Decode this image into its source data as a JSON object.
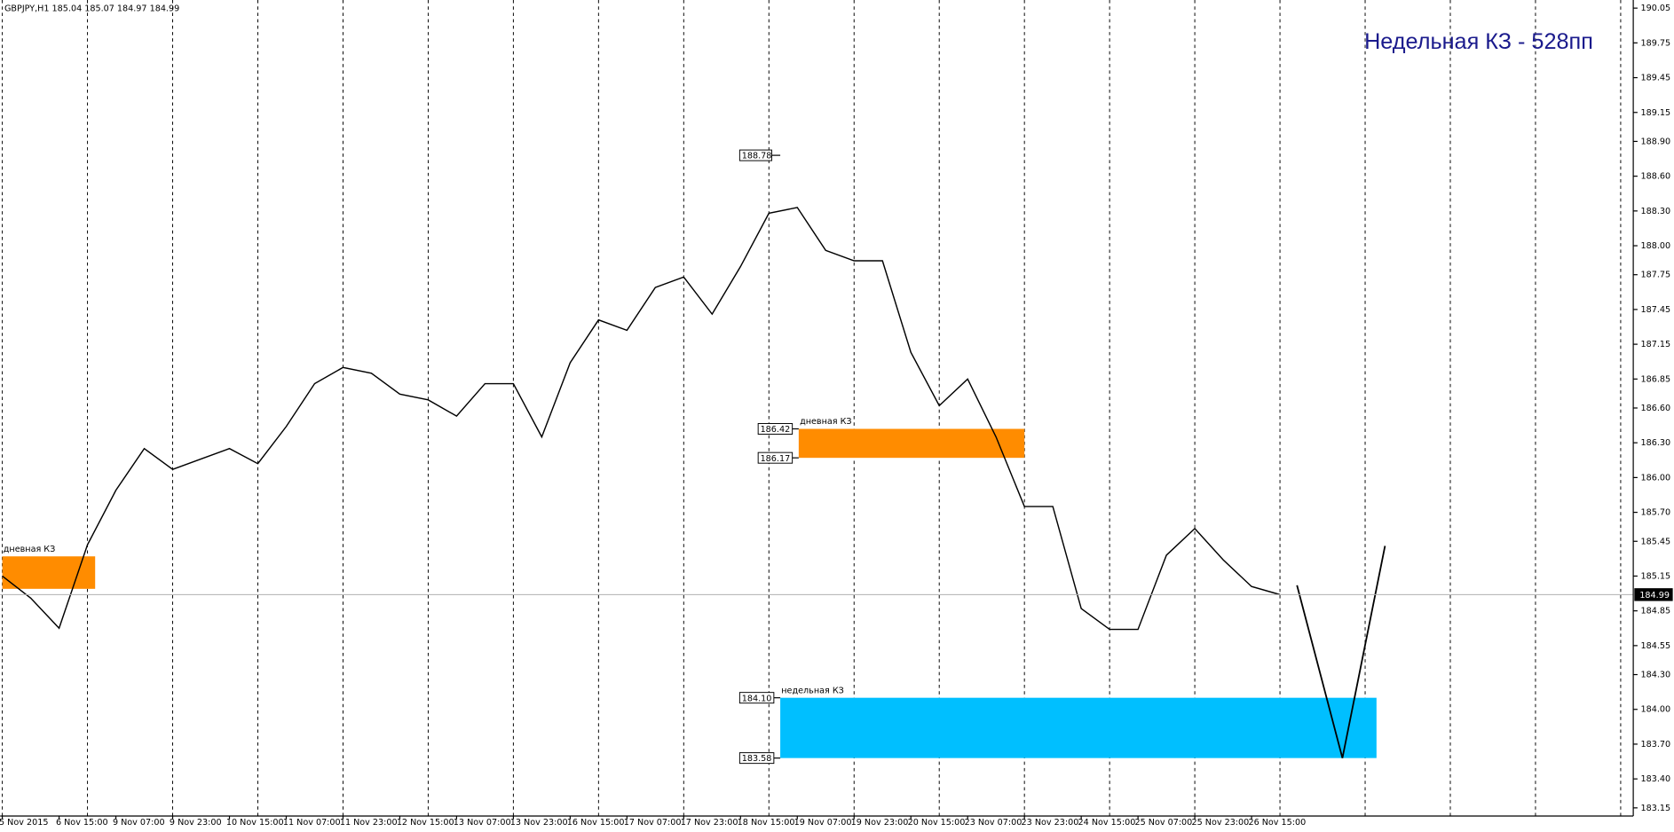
{
  "chart_data": {
    "type": "line",
    "header": "GBPJPY,H1  185.04 185.07 184.97 184.99",
    "annotation": "Недельная КЗ - 528пп",
    "categories": [
      "5 Nov 2015",
      null,
      "6 Nov 15:00",
      null,
      "9 Nov 07:00",
      null,
      "9 Nov 23:00",
      null,
      "10 Nov 15:00",
      null,
      "11 Nov 07:00",
      null,
      "11 Nov 23:00",
      null,
      "12 Nov 15:00",
      null,
      "13 Nov 07:00",
      null,
      "13 Nov 23:00",
      null,
      "16 Nov 15:00",
      null,
      "17 Nov 07:00",
      null,
      "17 Nov 23:00",
      null,
      "18 Nov 15:00",
      null,
      "19 Nov 07:00",
      null,
      "19 Nov 23:00",
      null,
      "20 Nov 15:00",
      null,
      "23 Nov 07:00",
      null,
      "23 Nov 23:00",
      null,
      "24 Nov 15:00",
      null,
      "25 Nov 07:00",
      null,
      "25 Nov 23:00",
      null,
      "26 Nov 15:00",
      null
    ],
    "values": [
      185.15,
      184.96,
      184.7,
      185.42,
      185.89,
      186.25,
      186.07,
      186.16,
      186.25,
      186.12,
      186.44,
      186.81,
      186.95,
      186.9,
      186.72,
      186.67,
      186.53,
      186.81,
      186.81,
      186.35,
      186.99,
      187.36,
      187.27,
      187.64,
      187.73,
      187.41,
      187.82,
      188.28,
      188.33,
      187.96,
      187.87,
      187.87,
      187.08,
      186.62,
      186.85,
      186.35,
      185.75,
      185.75,
      184.87,
      184.69,
      184.69,
      185.33,
      185.56,
      185.29,
      185.06,
      184.99
    ],
    "color": "#000000",
    "current_price": 184.99,
    "high_marker": {
      "x": 27.4,
      "value": 188.78
    },
    "zones": [
      {
        "label": "дневная КЗ",
        "x": [
          0,
          3.27
        ],
        "top": 185.32,
        "bottom": 185.04,
        "color": "#ff8c00",
        "price_labels": false
      },
      {
        "label": "дневная КЗ",
        "x": [
          28.05,
          36
        ],
        "top": 186.42,
        "bottom": 186.17,
        "color": "#ff8c00",
        "price_labels": true
      },
      {
        "label": "недельная КЗ",
        "x": [
          27.4,
          48.4
        ],
        "top": {
          "value": 184.1,
          "label": "184.10"
        },
        "bottom": 183.58,
        "color": "#00bfff",
        "price_labels": true
      }
    ],
    "projection": {
      "x": [
        45.6,
        47.2,
        48.7
      ],
      "values": [
        185.07,
        183.58,
        185.41
      ]
    },
    "ylim": [
      183.08,
      190.12
    ],
    "yticks": [
      190.05,
      189.75,
      189.45,
      189.15,
      {
        "value": 188.9,
        "label": "188.90"
      },
      {
        "value": 188.6,
        "label": "188.60"
      },
      {
        "value": 188.3,
        "label": "188.30"
      },
      {
        "value": 188,
        "label": "188.00"
      },
      187.75,
      187.45,
      187.15,
      186.85,
      {
        "value": 186.6,
        "label": "186.60"
      },
      {
        "value": 186.3,
        "label": "186.30"
      },
      {
        "value": 186,
        "label": "186.00"
      },
      {
        "value": 185.7,
        "label": "185.70"
      },
      185.45,
      185.15,
      184.85,
      184.55,
      {
        "value": 184.3,
        "label": "184.30"
      },
      {
        "value": 184,
        "label": "184.00"
      },
      {
        "value": 183.7,
        "label": "183.70"
      },
      {
        "value": 183.4,
        "label": "183.40"
      },
      183.15
    ],
    "grid": true
  }
}
